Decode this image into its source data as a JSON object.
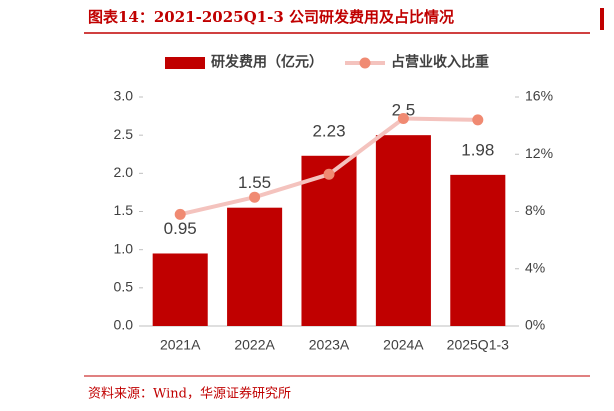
{
  "chart_data": {
    "type": "bar-line",
    "title": "图表14：2021-2025Q1-3 公司研发费用及占比情况",
    "source": "资料来源：Wind，华源证券研究所",
    "categories": [
      "2021A",
      "2022A",
      "2023A",
      "2024A",
      "2025Q1-3"
    ],
    "series": [
      {
        "name": "研发费用（亿元）",
        "type": "bar",
        "color": "#c00000",
        "values": [
          0.95,
          1.55,
          2.23,
          2.5,
          1.98
        ]
      },
      {
        "name": "占营业收入比重",
        "type": "line",
        "axis": "y2",
        "color": "#f4c3be",
        "marker_color": "#f08a72",
        "values": [
          7.8,
          9.0,
          10.6,
          14.5,
          14.4
        ]
      }
    ],
    "ylim": [
      0,
      3
    ],
    "yticks": [
      {
        "value": 0,
        "label": "0.0"
      },
      {
        "value": 0.5,
        "label": "0.5"
      },
      {
        "value": 1,
        "label": "1.0"
      },
      {
        "value": 1.5,
        "label": "1.5"
      },
      {
        "value": 2,
        "label": "2.0"
      },
      {
        "value": 2.5,
        "label": "2.5"
      },
      {
        "value": 3,
        "label": "3.0"
      }
    ],
    "y2lim": [
      0,
      16
    ],
    "y2ticks": [
      {
        "value": 0,
        "label": "0%"
      },
      {
        "value": 4,
        "label": "4%"
      },
      {
        "value": 8,
        "label": "8%"
      },
      {
        "value": 12,
        "label": "12%"
      },
      {
        "value": 16,
        "label": "16%"
      }
    ],
    "grid": false
  }
}
